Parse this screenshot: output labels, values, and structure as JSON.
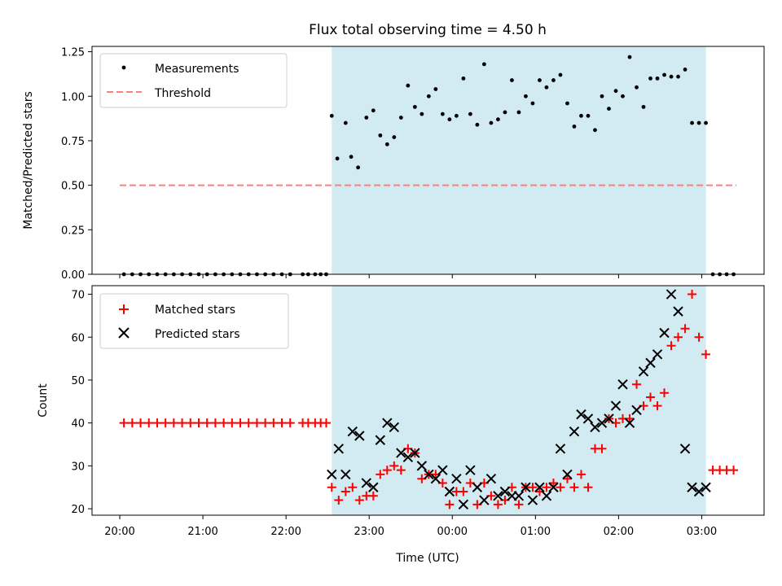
{
  "chart_data": [
    {
      "type": "scatter",
      "title": "Flux total observing time = 4.50 h",
      "ylabel": "Matched/Predicted stars",
      "xlabel": "",
      "xlim": [
        "19:40",
        "03:45"
      ],
      "ylim": [
        0,
        1.28
      ],
      "yticks": [
        "0.00",
        "0.25",
        "0.50",
        "0.75",
        "1.00",
        "1.25"
      ],
      "grid": false,
      "legend": "top-left",
      "shaded_interval": {
        "start": "22:33",
        "end": "03:03",
        "color": "#add8e6"
      },
      "threshold": {
        "name": "Threshold",
        "value": 0.5,
        "x_start": "20:00",
        "x_end": "03:25",
        "color": "#ff7f7f",
        "style": "dashed"
      },
      "series": [
        {
          "name": "Measurements",
          "color": "#000000",
          "marker": "dot",
          "x": [
            "20:03",
            "20:09",
            "20:15",
            "20:21",
            "20:27",
            "20:33",
            "20:39",
            "20:45",
            "20:51",
            "20:57",
            "21:03",
            "21:09",
            "21:15",
            "21:21",
            "21:27",
            "21:33",
            "21:39",
            "21:45",
            "21:51",
            "21:57",
            "22:03",
            "22:12",
            "22:16",
            "22:21",
            "22:25",
            "22:29",
            "22:33",
            "22:37",
            "22:43",
            "22:47",
            "22:52",
            "22:58",
            "23:03",
            "23:08",
            "23:13",
            "23:18",
            "23:23",
            "23:28",
            "23:33",
            "23:38",
            "23:43",
            "23:48",
            "23:53",
            "23:58",
            "00:03",
            "00:08",
            "00:13",
            "00:18",
            "00:23",
            "00:28",
            "00:33",
            "00:38",
            "00:43",
            "00:48",
            "00:53",
            "00:58",
            "01:03",
            "01:08",
            "01:13",
            "01:18",
            "01:23",
            "01:28",
            "01:33",
            "01:38",
            "01:43",
            "01:48",
            "01:53",
            "01:58",
            "02:03",
            "02:08",
            "02:13",
            "02:18",
            "02:23",
            "02:28",
            "02:33",
            "02:38",
            "02:43",
            "02:48",
            "02:53",
            "02:58",
            "03:03",
            "03:08",
            "03:13",
            "03:18",
            "03:23"
          ],
          "y": [
            0,
            0,
            0,
            0,
            0,
            0,
            0,
            0,
            0,
            0,
            0,
            0,
            0,
            0,
            0,
            0,
            0,
            0,
            0,
            0,
            0,
            0,
            0,
            0,
            0,
            0,
            0.89,
            0.65,
            0.85,
            0.66,
            0.6,
            0.88,
            0.92,
            0.78,
            0.73,
            0.77,
            0.88,
            1.06,
            0.94,
            0.9,
            1.0,
            1.04,
            0.9,
            0.87,
            0.89,
            1.1,
            0.9,
            0.84,
            1.18,
            0.85,
            0.87,
            0.91,
            1.09,
            0.91,
            1.0,
            0.96,
            1.09,
            1.05,
            1.09,
            1.12,
            0.96,
            0.83,
            0.89,
            0.89,
            0.81,
            1.0,
            0.93,
            1.03,
            1.0,
            1.22,
            1.05,
            0.94,
            1.1,
            1.1,
            1.12,
            1.11,
            1.11,
            1.15,
            0.85,
            0.85,
            0.85,
            0,
            0,
            0,
            0
          ]
        }
      ]
    },
    {
      "type": "scatter",
      "title": "",
      "ylabel": "Count",
      "xlabel": "Time (UTC)",
      "xlim": [
        "19:40",
        "03:45"
      ],
      "ylim": [
        18.5,
        72
      ],
      "yticks": [
        "20",
        "30",
        "40",
        "50",
        "60",
        "70"
      ],
      "xticks": [
        "20:00",
        "21:00",
        "22:00",
        "23:00",
        "00:00",
        "01:00",
        "02:00",
        "03:00"
      ],
      "grid": false,
      "legend": "top-left",
      "shaded_interval": {
        "start": "22:33",
        "end": "03:03",
        "color": "#add8e6"
      },
      "series": [
        {
          "name": "Matched stars",
          "color": "#ff0000",
          "marker": "plus",
          "x": [
            "20:03",
            "20:09",
            "20:15",
            "20:21",
            "20:27",
            "20:33",
            "20:39",
            "20:45",
            "20:51",
            "20:57",
            "21:03",
            "21:09",
            "21:15",
            "21:21",
            "21:27",
            "21:33",
            "21:39",
            "21:45",
            "21:51",
            "21:57",
            "22:03",
            "22:12",
            "22:16",
            "22:21",
            "22:25",
            "22:29",
            "22:33",
            "22:38",
            "22:43",
            "22:48",
            "22:53",
            "22:58",
            "23:03",
            "23:08",
            "23:13",
            "23:18",
            "23:23",
            "23:28",
            "23:33",
            "23:38",
            "23:43",
            "23:48",
            "23:53",
            "23:58",
            "00:03",
            "00:08",
            "00:13",
            "00:18",
            "00:23",
            "00:28",
            "00:33",
            "00:38",
            "00:43",
            "00:48",
            "00:53",
            "00:58",
            "01:03",
            "01:08",
            "01:13",
            "01:18",
            "01:23",
            "01:28",
            "01:33",
            "01:38",
            "01:43",
            "01:48",
            "01:53",
            "01:58",
            "02:03",
            "02:08",
            "02:13",
            "02:18",
            "02:23",
            "02:28",
            "02:33",
            "02:38",
            "02:43",
            "02:48",
            "02:53",
            "02:58",
            "03:03",
            "03:08",
            "03:13",
            "03:18",
            "03:23"
          ],
          "y": [
            40,
            40,
            40,
            40,
            40,
            40,
            40,
            40,
            40,
            40,
            40,
            40,
            40,
            40,
            40,
            40,
            40,
            40,
            40,
            40,
            40,
            40,
            40,
            40,
            40,
            40,
            25,
            22,
            24,
            25,
            22,
            23,
            23,
            28,
            29,
            30,
            29,
            34,
            33,
            27,
            28,
            28,
            26,
            21,
            24,
            24,
            26,
            21,
            26,
            23,
            21,
            22,
            25,
            21,
            25,
            25,
            24,
            25,
            26,
            25,
            27,
            25,
            28,
            25,
            34,
            34,
            41,
            40,
            41,
            41,
            49,
            44,
            46,
            44,
            47,
            58,
            60,
            62,
            70,
            60,
            56,
            29,
            29,
            29,
            29
          ]
        },
        {
          "name": "Predicted stars",
          "color": "#000000",
          "marker": "x",
          "x": [
            "22:33",
            "22:38",
            "22:43",
            "22:48",
            "22:53",
            "22:58",
            "23:03",
            "23:08",
            "23:13",
            "23:18",
            "23:23",
            "23:28",
            "23:33",
            "23:38",
            "23:43",
            "23:48",
            "23:53",
            "23:58",
            "00:03",
            "00:08",
            "00:13",
            "00:18",
            "00:23",
            "00:28",
            "00:33",
            "00:38",
            "00:43",
            "00:48",
            "00:53",
            "00:58",
            "01:03",
            "01:08",
            "01:13",
            "01:18",
            "01:23",
            "01:28",
            "01:33",
            "01:38",
            "01:43",
            "01:48",
            "01:53",
            "01:58",
            "02:03",
            "02:08",
            "02:13",
            "02:18",
            "02:23",
            "02:28",
            "02:33",
            "02:38",
            "02:43",
            "02:48",
            "02:53",
            "02:58",
            "03:03"
          ],
          "y": [
            28,
            34,
            28,
            38,
            37,
            26,
            25,
            36,
            40,
            39,
            33,
            32,
            33,
            30,
            28,
            27,
            29,
            24,
            27,
            21,
            29,
            25,
            22,
            27,
            23,
            24,
            23,
            23,
            25,
            22,
            25,
            23,
            25,
            34,
            28,
            38,
            42,
            41,
            39,
            40,
            41,
            44,
            49,
            40,
            43,
            52,
            54,
            56,
            61,
            70,
            66,
            34,
            25,
            24,
            25
          ]
        }
      ]
    }
  ]
}
